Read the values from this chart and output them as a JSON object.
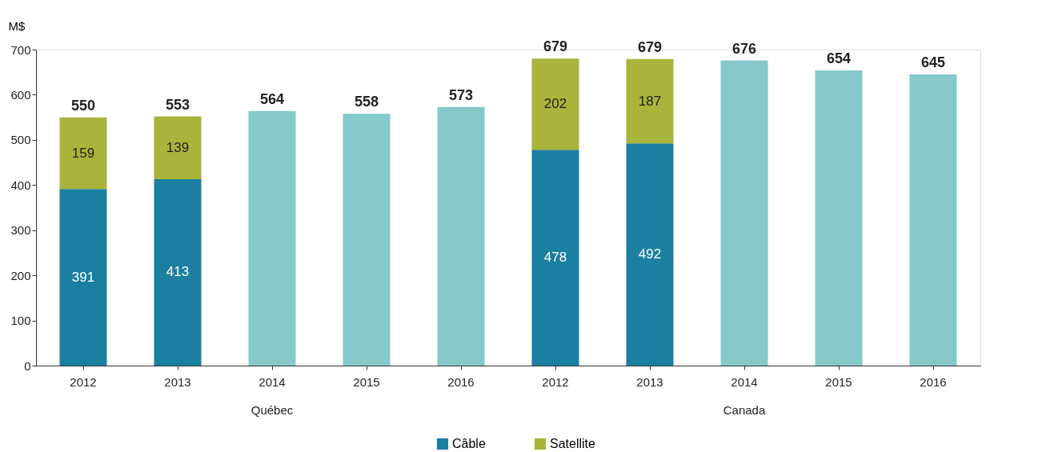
{
  "chart_data": {
    "type": "bar",
    "stacked": true,
    "ylabel": "M$",
    "categories": [
      "2012",
      "2013",
      "2014",
      "2015",
      "2016",
      "2012",
      "2013",
      "2014",
      "2015",
      "2016"
    ],
    "series": [
      {
        "name": "Câble",
        "color": "#1a7fa1",
        "values": [
          391,
          413,
          null,
          null,
          null,
          478,
          492,
          null,
          null,
          null
        ],
        "value_labels": [
          "391",
          "413",
          null,
          null,
          null,
          "478",
          "492",
          null,
          null,
          null
        ]
      },
      {
        "name": "Satellite",
        "color": "#a8b43a",
        "values": [
          159,
          139,
          null,
          null,
          null,
          202,
          187,
          null,
          null,
          null
        ],
        "value_labels": [
          "159",
          "139",
          null,
          null,
          null,
          "202",
          "187",
          null,
          null,
          null
        ]
      },
      {
        "color": "#85c9ca",
        "values": [
          null,
          null,
          564,
          558,
          573,
          null,
          null,
          676,
          654,
          645
        ]
      }
    ],
    "totals": [
      "550",
      "553",
      "564",
      "558",
      "573",
      "679",
      "679",
      "676",
      "654",
      "645"
    ],
    "ylim": [
      0,
      700
    ],
    "yticks": [
      0,
      100,
      200,
      300,
      400,
      500,
      600,
      700
    ],
    "annotations": [
      "Québec",
      "Canada"
    ],
    "grid": false,
    "legend": "bottom"
  }
}
